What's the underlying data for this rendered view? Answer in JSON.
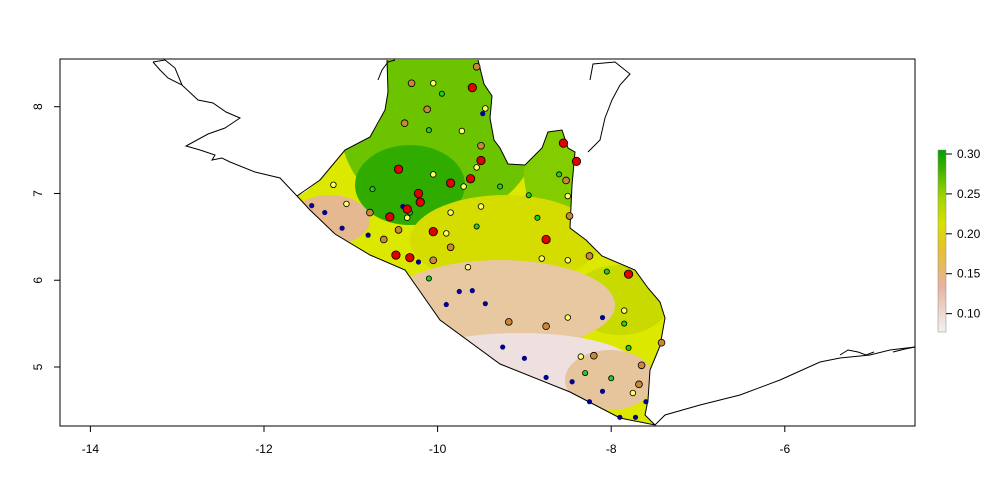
{
  "map": {
    "x_axis": {
      "range": [
        -14.35,
        -4.5
      ],
      "ticks": [
        -14,
        -12,
        -10,
        -8,
        -6
      ],
      "tick_labels": [
        "-14",
        "-12",
        "-10",
        "-8",
        "-6"
      ]
    },
    "y_axis": {
      "range": [
        4.32,
        8.55
      ],
      "ticks": [
        5,
        6,
        7,
        8
      ],
      "tick_labels": [
        "5",
        "6",
        "7",
        "8"
      ]
    },
    "legend": {
      "placement": "right",
      "range": [
        0.077,
        0.305
      ],
      "ticks": [
        0.1,
        0.15,
        0.2,
        0.25,
        0.3
      ],
      "tick_labels": [
        "0.10",
        "0.15",
        "0.20",
        "0.25",
        "0.30"
      ],
      "colors": [
        "#f2f2f2",
        "#e6b3a0",
        "#e8c030",
        "#d8e000",
        "#9cd400",
        "#3cb000",
        "#00a000"
      ]
    },
    "point_colors": {
      "darkblue": "#00008b",
      "green": "#22cc22",
      "yellow": "#ffff66",
      "brown": "#c8883a",
      "red": "#e00000"
    },
    "points": [
      {
        "lon": -11.45,
        "lat": 6.86,
        "cls": "darkblue"
      },
      {
        "lon": -11.3,
        "lat": 6.78,
        "cls": "darkblue"
      },
      {
        "lon": -11.1,
        "lat": 6.6,
        "cls": "darkblue"
      },
      {
        "lon": -10.8,
        "lat": 6.52,
        "cls": "darkblue"
      },
      {
        "lon": -10.22,
        "lat": 6.21,
        "cls": "darkblue"
      },
      {
        "lon": -9.75,
        "lat": 5.87,
        "cls": "darkblue"
      },
      {
        "lon": -9.9,
        "lat": 5.72,
        "cls": "darkblue"
      },
      {
        "lon": -9.6,
        "lat": 5.88,
        "cls": "darkblue"
      },
      {
        "lon": -9.45,
        "lat": 5.73,
        "cls": "darkblue"
      },
      {
        "lon": -9.25,
        "lat": 5.23,
        "cls": "darkblue"
      },
      {
        "lon": -9.0,
        "lat": 5.1,
        "cls": "darkblue"
      },
      {
        "lon": -8.75,
        "lat": 4.88,
        "cls": "darkblue"
      },
      {
        "lon": -8.45,
        "lat": 4.83,
        "cls": "darkblue"
      },
      {
        "lon": -8.25,
        "lat": 4.6,
        "cls": "darkblue"
      },
      {
        "lon": -8.1,
        "lat": 4.72,
        "cls": "darkblue"
      },
      {
        "lon": -7.9,
        "lat": 4.42,
        "cls": "darkblue"
      },
      {
        "lon": -7.72,
        "lat": 4.42,
        "cls": "darkblue"
      },
      {
        "lon": -7.6,
        "lat": 4.6,
        "cls": "darkblue"
      },
      {
        "lon": -8.1,
        "lat": 5.57,
        "cls": "darkblue"
      },
      {
        "lon": -9.48,
        "lat": 7.92,
        "cls": "darkblue"
      },
      {
        "lon": -10.4,
        "lat": 6.85,
        "cls": "darkblue"
      },
      {
        "lon": -9.95,
        "lat": 8.15,
        "cls": "green"
      },
      {
        "lon": -10.1,
        "lat": 7.73,
        "cls": "green"
      },
      {
        "lon": -10.75,
        "lat": 7.05,
        "cls": "green"
      },
      {
        "lon": -10.32,
        "lat": 6.78,
        "cls": "green"
      },
      {
        "lon": -9.55,
        "lat": 6.62,
        "cls": "green"
      },
      {
        "lon": -9.28,
        "lat": 7.08,
        "cls": "green"
      },
      {
        "lon": -8.95,
        "lat": 6.98,
        "cls": "green"
      },
      {
        "lon": -8.85,
        "lat": 6.72,
        "cls": "green"
      },
      {
        "lon": -8.6,
        "lat": 7.22,
        "cls": "green"
      },
      {
        "lon": -10.1,
        "lat": 6.02,
        "cls": "green"
      },
      {
        "lon": -8.05,
        "lat": 6.1,
        "cls": "green"
      },
      {
        "lon": -7.85,
        "lat": 5.5,
        "cls": "green"
      },
      {
        "lon": -7.8,
        "lat": 5.22,
        "cls": "green"
      },
      {
        "lon": -8.3,
        "lat": 4.93,
        "cls": "green"
      },
      {
        "lon": -8.0,
        "lat": 4.87,
        "cls": "green"
      },
      {
        "lon": -10.05,
        "lat": 8.27,
        "cls": "yellow"
      },
      {
        "lon": -9.72,
        "lat": 7.72,
        "cls": "yellow"
      },
      {
        "lon": -10.05,
        "lat": 7.22,
        "cls": "yellow"
      },
      {
        "lon": -9.55,
        "lat": 7.3,
        "cls": "yellow"
      },
      {
        "lon": -9.45,
        "lat": 7.98,
        "cls": "yellow"
      },
      {
        "lon": -11.2,
        "lat": 7.1,
        "cls": "yellow"
      },
      {
        "lon": -11.05,
        "lat": 6.88,
        "cls": "yellow"
      },
      {
        "lon": -10.35,
        "lat": 6.72,
        "cls": "yellow"
      },
      {
        "lon": -9.85,
        "lat": 6.78,
        "cls": "yellow"
      },
      {
        "lon": -9.7,
        "lat": 7.08,
        "cls": "yellow"
      },
      {
        "lon": -9.5,
        "lat": 6.85,
        "cls": "yellow"
      },
      {
        "lon": -9.9,
        "lat": 6.54,
        "cls": "yellow"
      },
      {
        "lon": -9.65,
        "lat": 6.15,
        "cls": "yellow"
      },
      {
        "lon": -8.8,
        "lat": 6.25,
        "cls": "yellow"
      },
      {
        "lon": -8.5,
        "lat": 6.97,
        "cls": "yellow"
      },
      {
        "lon": -8.5,
        "lat": 6.23,
        "cls": "yellow"
      },
      {
        "lon": -8.5,
        "lat": 5.57,
        "cls": "yellow"
      },
      {
        "lon": -8.35,
        "lat": 5.12,
        "cls": "yellow"
      },
      {
        "lon": -7.85,
        "lat": 5.65,
        "cls": "yellow"
      },
      {
        "lon": -7.75,
        "lat": 4.7,
        "cls": "yellow"
      },
      {
        "lon": -10.3,
        "lat": 8.27,
        "cls": "brown"
      },
      {
        "lon": -10.12,
        "lat": 7.97,
        "cls": "brown"
      },
      {
        "lon": -10.38,
        "lat": 7.81,
        "cls": "brown"
      },
      {
        "lon": -9.55,
        "lat": 8.46,
        "cls": "brown"
      },
      {
        "lon": -9.5,
        "lat": 7.55,
        "cls": "brown"
      },
      {
        "lon": -8.52,
        "lat": 7.15,
        "cls": "brown"
      },
      {
        "lon": -8.48,
        "lat": 6.74,
        "cls": "brown"
      },
      {
        "lon": -10.78,
        "lat": 6.78,
        "cls": "brown"
      },
      {
        "lon": -10.62,
        "lat": 6.47,
        "cls": "brown"
      },
      {
        "lon": -10.45,
        "lat": 6.58,
        "cls": "brown"
      },
      {
        "lon": -10.05,
        "lat": 6.23,
        "cls": "brown"
      },
      {
        "lon": -9.85,
        "lat": 6.38,
        "cls": "brown"
      },
      {
        "lon": -9.18,
        "lat": 5.52,
        "cls": "brown"
      },
      {
        "lon": -8.75,
        "lat": 5.47,
        "cls": "brown"
      },
      {
        "lon": -8.25,
        "lat": 6.28,
        "cls": "brown"
      },
      {
        "lon": -8.2,
        "lat": 5.13,
        "cls": "brown"
      },
      {
        "lon": -7.65,
        "lat": 5.02,
        "cls": "brown"
      },
      {
        "lon": -7.68,
        "lat": 4.8,
        "cls": "brown"
      },
      {
        "lon": -7.42,
        "lat": 5.28,
        "cls": "brown"
      },
      {
        "lon": -9.6,
        "lat": 8.22,
        "cls": "red"
      },
      {
        "lon": -9.5,
        "lat": 7.38,
        "cls": "red"
      },
      {
        "lon": -9.62,
        "lat": 7.17,
        "cls": "red"
      },
      {
        "lon": -9.85,
        "lat": 7.12,
        "cls": "red"
      },
      {
        "lon": -10.45,
        "lat": 7.28,
        "cls": "red"
      },
      {
        "lon": -10.22,
        "lat": 7.0,
        "cls": "red"
      },
      {
        "lon": -10.2,
        "lat": 6.9,
        "cls": "red"
      },
      {
        "lon": -10.35,
        "lat": 6.82,
        "cls": "red"
      },
      {
        "lon": -10.55,
        "lat": 6.73,
        "cls": "red"
      },
      {
        "lon": -10.05,
        "lat": 6.56,
        "cls": "red"
      },
      {
        "lon": -10.48,
        "lat": 6.29,
        "cls": "red"
      },
      {
        "lon": -10.32,
        "lat": 6.26,
        "cls": "red"
      },
      {
        "lon": -8.75,
        "lat": 6.47,
        "cls": "red"
      },
      {
        "lon": -8.55,
        "lat": 7.58,
        "cls": "red"
      },
      {
        "lon": -8.4,
        "lat": 7.37,
        "cls": "red"
      },
      {
        "lon": -7.8,
        "lat": 6.07,
        "cls": "red"
      }
    ]
  }
}
